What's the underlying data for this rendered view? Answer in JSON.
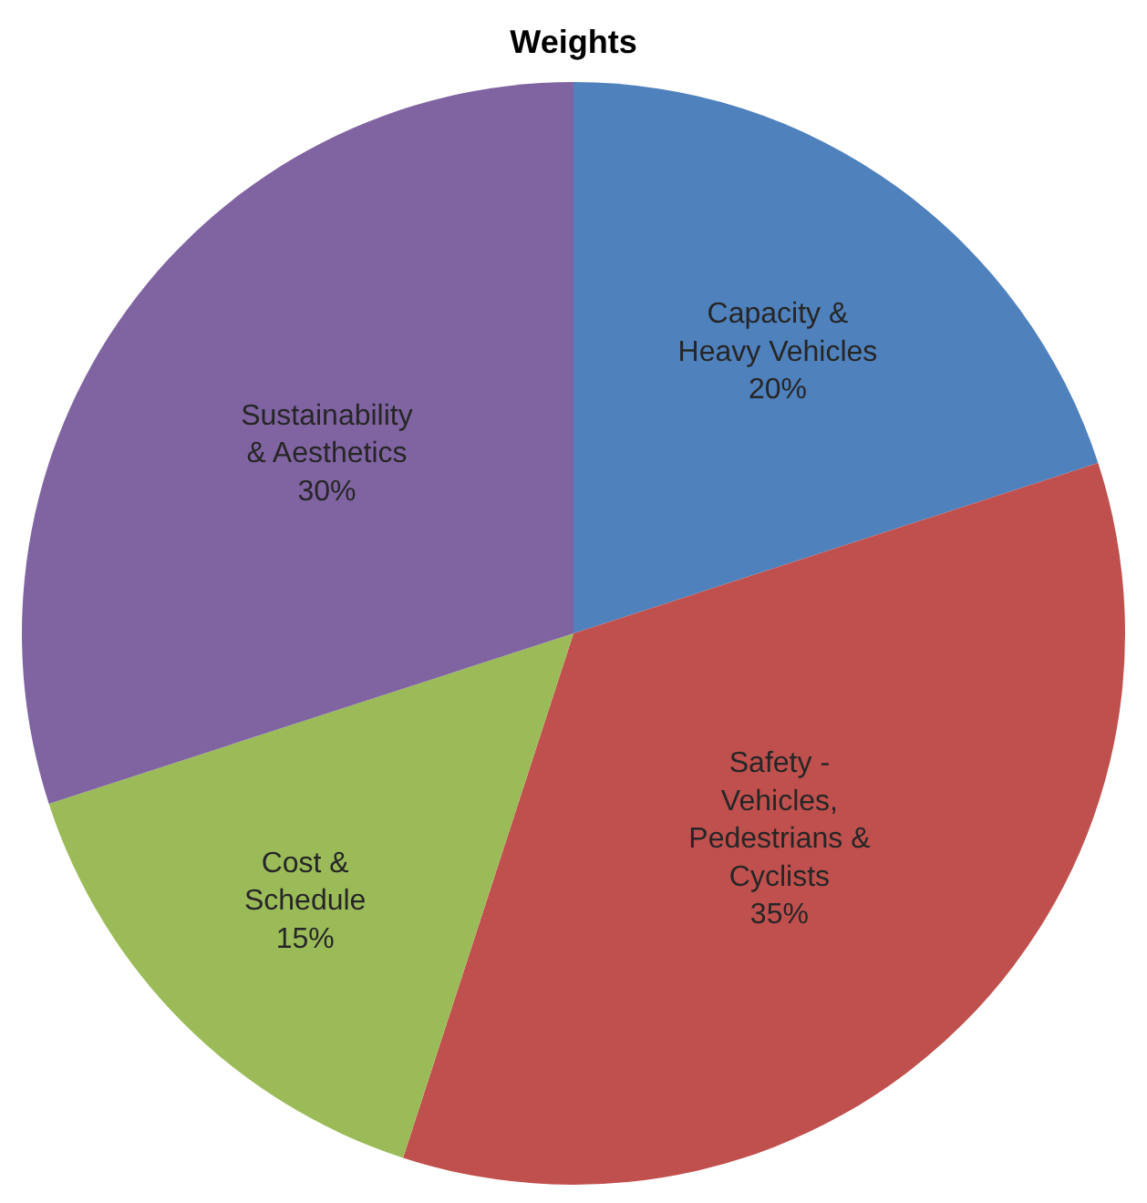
{
  "chart_data": {
    "type": "pie",
    "title": "Weights",
    "categories": [
      "Capacity & Heavy Vehicles",
      "Safety - Vehicles, Pedestrians & Cyclists",
      "Cost & Schedule",
      "Sustainability & Aesthetics"
    ],
    "values": [
      20,
      35,
      15,
      30
    ],
    "colors": [
      "#4f81bd",
      "#c0504d",
      "#9bbb59",
      "#8064a2"
    ],
    "value_labels": [
      "20%",
      "35%",
      "15%",
      "30%"
    ],
    "legend": false
  }
}
